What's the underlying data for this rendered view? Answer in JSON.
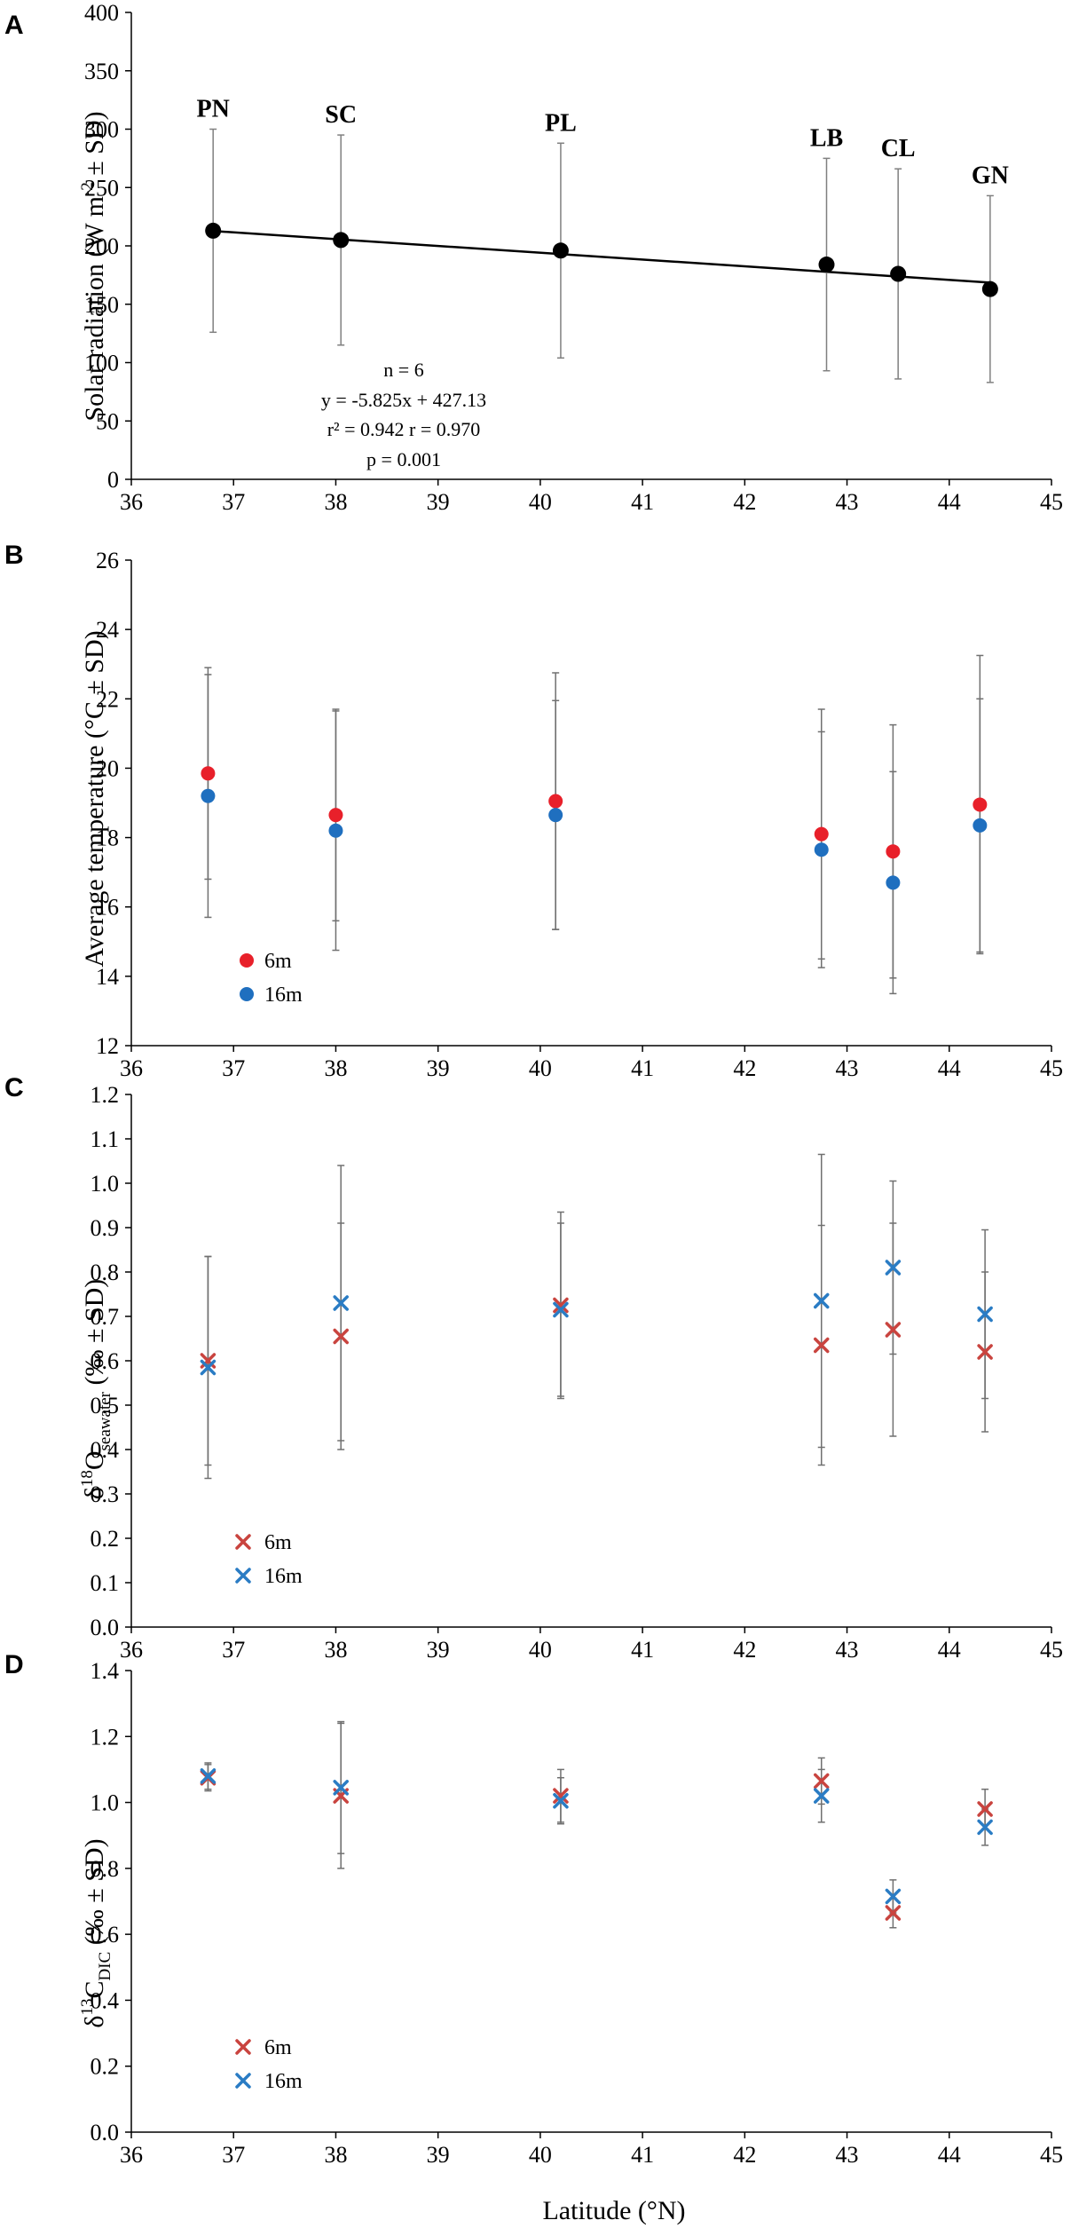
{
  "x_axis": {
    "label": "Latitude (°N)",
    "range": [
      36,
      45
    ],
    "ticks": [
      "36",
      "37",
      "38",
      "39",
      "40",
      "41",
      "42",
      "43",
      "44",
      "45"
    ]
  },
  "chart_data": [
    {
      "panel_label": "A",
      "type": "scatter",
      "ylabel_main": "Solar radiation (W m",
      "ylabel_sup": "-2",
      "ylabel_tail": " ± SD)",
      "ylim": [
        0,
        400
      ],
      "y_ticks": [
        "0",
        "50",
        "100",
        "150",
        "200",
        "250",
        "300",
        "350",
        "400"
      ],
      "sites": [
        "PN",
        "SC",
        "PL",
        "LB",
        "CL",
        "GN"
      ],
      "x": [
        36.8,
        38.05,
        40.2,
        42.8,
        43.5,
        44.4
      ],
      "values": [
        213,
        205,
        196,
        184,
        176,
        163
      ],
      "errors": [
        87,
        90,
        92,
        91,
        90,
        80
      ],
      "trendline": {
        "slope": -5.825,
        "intercept": 427.13
      },
      "stats": [
        "n = 6",
        "y = -5.825x + 427.13",
        "r² = 0.942 r = 0.970",
        "p = 0.001"
      ],
      "colors": {
        "point": "#000000",
        "line": "#000000",
        "error": "#808080"
      }
    },
    {
      "panel_label": "B",
      "type": "scatter",
      "ylabel": "Average temperature (°C ± SD)",
      "ylim": [
        12,
        26
      ],
      "y_ticks": [
        "12",
        "14",
        "16",
        "18",
        "20",
        "22",
        "24",
        "26"
      ],
      "x": [
        36.75,
        38.0,
        40.15,
        42.75,
        43.45,
        44.3
      ],
      "series": [
        {
          "name": "6m",
          "color": "#e8202a",
          "values": [
            19.85,
            18.65,
            19.05,
            18.1,
            17.6,
            18.95
          ],
          "errors": [
            3.05,
            3.05,
            3.7,
            3.6,
            3.65,
            4.3
          ]
        },
        {
          "name": "16m",
          "color": "#1f6fbf",
          "values": [
            19.2,
            18.2,
            18.65,
            17.65,
            16.7,
            18.35
          ],
          "errors": [
            3.5,
            3.45,
            3.3,
            3.4,
            3.2,
            3.65
          ]
        }
      ],
      "legend": [
        "6m",
        "16m"
      ]
    },
    {
      "panel_label": "C",
      "type": "scatter",
      "ylabel_main": "δ",
      "ylabel_sup": "18",
      "ylabel_mid": "O",
      "ylabel_sub": "seawater",
      "ylabel_tail": " (‰ ± SD)",
      "ylim": [
        0,
        1.2
      ],
      "y_ticks": [
        "0.0",
        "0.1",
        "0.2",
        "0.3",
        "0.4",
        "0.5",
        "0.6",
        "0.7",
        "0.8",
        "0.9",
        "1.0",
        "1.1",
        "1.2"
      ],
      "x": [
        36.75,
        38.05,
        40.2,
        42.75,
        43.45,
        44.35
      ],
      "series": [
        {
          "name": "6m",
          "color": "#c9443f",
          "values": [
            0.6,
            0.655,
            0.725,
            0.635,
            0.67,
            0.62
          ],
          "errors": [
            0.235,
            0.255,
            0.21,
            0.27,
            0.24,
            0.18
          ]
        },
        {
          "name": "16m",
          "color": "#2a7cc4",
          "values": [
            0.585,
            0.73,
            0.715,
            0.735,
            0.81,
            0.705
          ],
          "errors": [
            0.25,
            0.31,
            0.195,
            0.33,
            0.195,
            0.19
          ]
        }
      ],
      "legend": [
        "6m",
        "16m"
      ]
    },
    {
      "panel_label": "D",
      "type": "scatter",
      "ylabel_main": "δ",
      "ylabel_sup": "13",
      "ylabel_mid": "C",
      "ylabel_sub": "DIC",
      "ylabel_tail": " (‰ ± SD)",
      "ylim": [
        0,
        1.4
      ],
      "y_ticks": [
        "0.0",
        "0.2",
        "0.4",
        "0.6",
        "0.8",
        "1.0",
        "1.2",
        "1.4"
      ],
      "x": [
        36.75,
        38.05,
        40.2,
        42.75,
        43.45,
        44.35
      ],
      "series": [
        {
          "name": "6m",
          "color": "#c9443f",
          "values": [
            1.075,
            1.02,
            1.02,
            1.065,
            0.665,
            0.98
          ],
          "errors": [
            0.04,
            0.22,
            0.08,
            0.07,
            0.045,
            0.06
          ]
        },
        {
          "name": "16m",
          "color": "#2a7cc4",
          "values": [
            1.08,
            1.045,
            1.005,
            1.02,
            0.715,
            0.925
          ],
          "errors": [
            0.04,
            0.2,
            0.07,
            0.08,
            0.05,
            0.055
          ]
        }
      ],
      "legend": [
        "6m",
        "16m"
      ]
    }
  ]
}
